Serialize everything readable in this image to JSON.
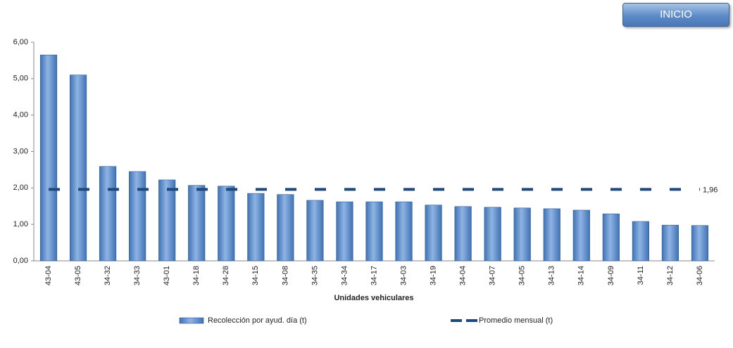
{
  "button": {
    "label": "INICIO"
  },
  "chart_data": {
    "type": "bar",
    "x_label": "Unidades vehiculares",
    "categories": [
      "43-04",
      "43-05",
      "34-32",
      "34-33",
      "43-01",
      "34-18",
      "34-28",
      "34-15",
      "34-08",
      "34-35",
      "34-34",
      "34-17",
      "34-03",
      "34-19",
      "34-04",
      "34-07",
      "34-05",
      "34-13",
      "34-14",
      "34-09",
      "34-11",
      "34-12",
      "34-06"
    ],
    "series": [
      {
        "name": "Recolección por ayud. día (t)",
        "type": "bar",
        "color": "#4f81bd",
        "values": [
          5.65,
          5.1,
          2.59,
          2.45,
          2.22,
          2.07,
          2.05,
          1.85,
          1.82,
          1.66,
          1.62,
          1.62,
          1.62,
          1.53,
          1.49,
          1.47,
          1.45,
          1.43,
          1.39,
          1.29,
          1.08,
          0.98,
          0.97
        ]
      },
      {
        "name": "Promedio mensual (t)",
        "type": "line",
        "color": "#1f497d",
        "values": [
          1.96,
          1.96,
          1.96,
          1.96,
          1.96,
          1.96,
          1.96,
          1.96,
          1.96,
          1.96,
          1.96,
          1.96,
          1.96,
          1.96,
          1.96,
          1.96,
          1.96,
          1.96,
          1.96,
          1.96,
          1.96,
          1.96,
          1.96
        ],
        "value_labels": [
          null,
          null,
          null,
          null,
          null,
          null,
          null,
          null,
          null,
          null,
          null,
          null,
          null,
          null,
          null,
          null,
          null,
          null,
          null,
          null,
          null,
          null,
          "1,96"
        ]
      }
    ],
    "ylim": [
      0,
      6
    ],
    "yticks": [
      {
        "value": 0,
        "label": "0,00"
      },
      {
        "value": 1,
        "label": "1,00"
      },
      {
        "value": 2,
        "label": "2,00"
      },
      {
        "value": 3,
        "label": "3,00"
      },
      {
        "value": 4,
        "label": "4,00"
      },
      {
        "value": 5,
        "label": "5,00"
      },
      {
        "value": 6,
        "label": "6,00"
      }
    ],
    "grid": false
  }
}
